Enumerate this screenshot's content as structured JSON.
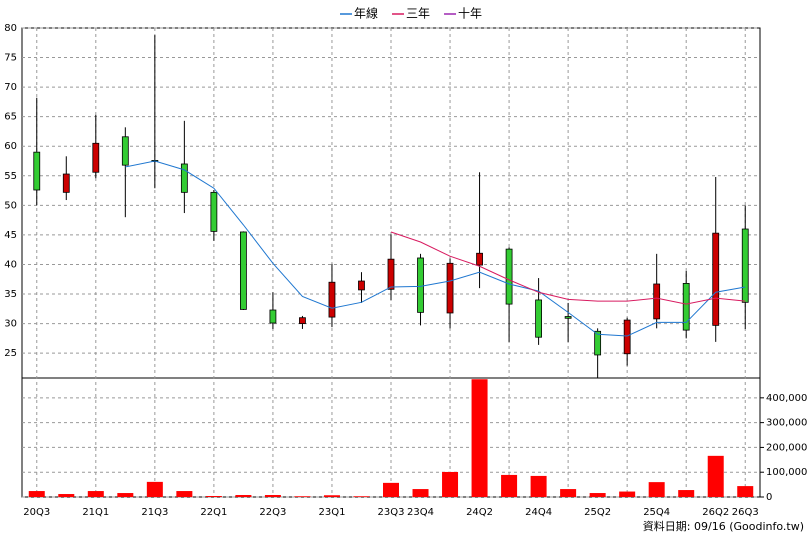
{
  "chart_data": [
    {
      "type": "candlestick",
      "categories": [
        "20Q3",
        null,
        "21Q1",
        null,
        "21Q3",
        null,
        "22Q1",
        null,
        "22Q3",
        null,
        "23Q1",
        null,
        "23Q3",
        "23Q4",
        null,
        "24Q2",
        null,
        "24Q4",
        null,
        "25Q2",
        null,
        "25Q4",
        null,
        "26Q2",
        "26Q3"
      ],
      "open": [
        59.0,
        52.2,
        55.6,
        61.6,
        57.6,
        57.0,
        52.2,
        45.5,
        32.3,
        30.0,
        31.1,
        35.7,
        35.8,
        41.1,
        31.8,
        39.9,
        42.6,
        34.0,
        31.2,
        28.7,
        24.9,
        30.8,
        36.8,
        29.7,
        46.0
      ],
      "high": [
        68.2,
        58.3,
        65.3,
        63.2,
        78.8,
        64.3,
        52.6,
        45.6,
        35.3,
        31.3,
        40.1,
        38.7,
        45.1,
        41.8,
        41.0,
        55.6,
        42.9,
        37.7,
        33.5,
        29.2,
        31.0,
        41.8,
        38.9,
        54.8,
        50.0
      ],
      "low": [
        50.0,
        50.9,
        54.6,
        48.0,
        52.9,
        48.7,
        44.0,
        32.3,
        29.1,
        29.1,
        29.4,
        33.5,
        34.0,
        29.7,
        29.2,
        36.0,
        26.9,
        26.4,
        26.9,
        20.8,
        22.9,
        29.2,
        27.5,
        26.9,
        29.1
      ],
      "close": [
        52.6,
        55.3,
        60.5,
        56.8,
        57.4,
        52.2,
        45.6,
        32.4,
        30.1,
        31.0,
        37.0,
        37.2,
        40.9,
        31.9,
        40.2,
        41.9,
        33.3,
        27.7,
        30.9,
        24.7,
        30.6,
        36.7,
        28.9,
        45.3,
        33.6
      ],
      "up_color": "#cc0000",
      "down_color": "#33cc33",
      "series": [
        {
          "name": "年線",
          "color": "#1f77d0",
          "values": [
            null,
            null,
            null,
            56.5,
            57.5,
            56.0,
            52.9,
            46.7,
            40.2,
            34.6,
            32.6,
            33.6,
            36.2,
            36.3,
            37.2,
            38.7,
            36.7,
            35.5,
            31.9,
            28.2,
            27.9,
            30.2,
            30.2,
            35.3,
            36.2
          ]
        },
        {
          "name": "三年",
          "color": "#d81b60",
          "values": [
            null,
            null,
            null,
            null,
            null,
            null,
            null,
            null,
            null,
            null,
            null,
            null,
            45.5,
            43.8,
            41.4,
            39.7,
            37.4,
            35.3,
            34.1,
            33.8,
            33.8,
            34.3,
            33.3,
            34.3,
            33.8
          ]
        },
        {
          "name": "十年",
          "color": "#9c27b0",
          "values": [
            null,
            null,
            null,
            null,
            null,
            null,
            null,
            null,
            null,
            null,
            null,
            null,
            null,
            null,
            null,
            null,
            null,
            null,
            null,
            null,
            null,
            null,
            null,
            null,
            null
          ]
        }
      ],
      "ylim": [
        20.8,
        80
      ],
      "yticks": [
        25,
        30,
        35,
        40,
        45,
        50,
        55,
        60,
        65,
        70,
        75,
        80
      ],
      "grid": true
    },
    {
      "type": "bar",
      "values": [
        24000,
        12000,
        24000,
        16000,
        61000,
        24000,
        4000,
        8000,
        8000,
        3000,
        7000,
        3000,
        57000,
        32000,
        101000,
        475000,
        89000,
        85000,
        32000,
        16000,
        22000,
        60000,
        28000,
        166000,
        44000
      ],
      "color": "#ff0000",
      "ylim": [
        0,
        480000
      ],
      "yticks": [
        0,
        {
          "value": 100000,
          "label": "100,000"
        },
        {
          "value": 200000,
          "label": "200,000"
        },
        {
          "value": 300000,
          "label": "300,000"
        },
        {
          "value": 400000,
          "label": "400,000"
        }
      ],
      "grid": true
    }
  ],
  "footer": "資料日期: 09/16 (Goodinfo.tw)"
}
